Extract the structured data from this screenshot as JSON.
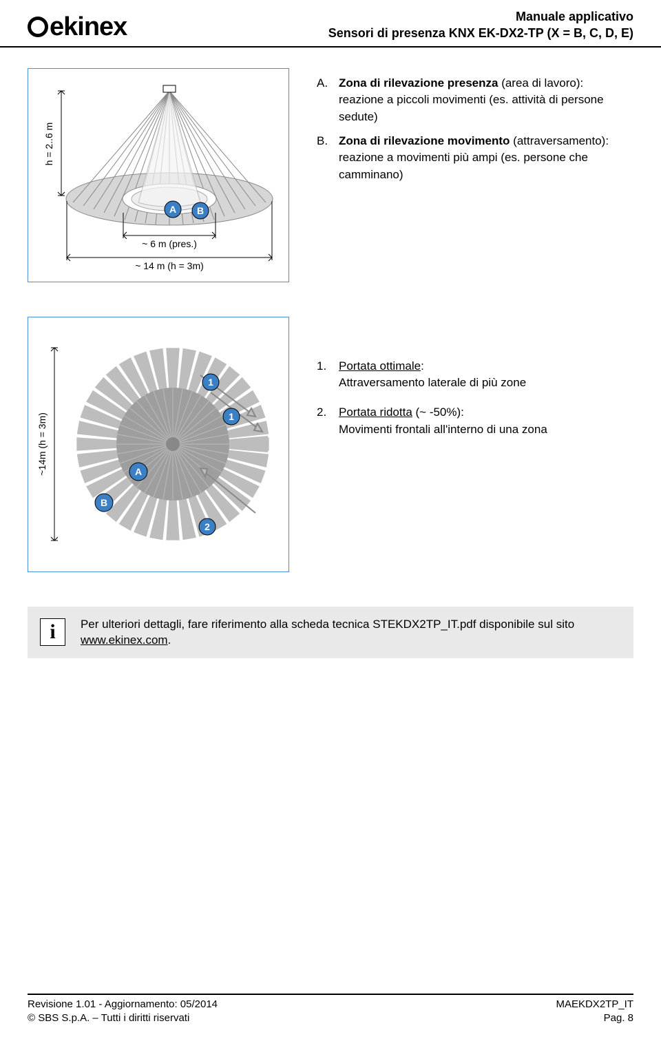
{
  "header": {
    "logo_text": "ekinex",
    "line1": "Manuale applicativo",
    "line2": "Sensori di presenza KNX EK-DX2-TP (X = B, C, D, E)"
  },
  "figure1": {
    "h_label": "h = 2..6 m",
    "pres_label": "~ 6 m (pres.)",
    "mov_label": "~ 14 m (h = 3m)",
    "markers": {
      "A": "A",
      "B": "B"
    },
    "colors": {
      "frame": "#4a90d9",
      "cone_light": "#d6d6d6",
      "cone_dark": "#9e9e9e",
      "ellipse_fill": "#bcbcbc",
      "marker_fill": "#3b7fc4"
    }
  },
  "desc1": {
    "A_letter": "A.",
    "A_bold": "Zona di rilevazione presenza",
    "A_rest": " (area di lavoro):\nreazione a piccoli movimenti (es. attività di persone sedute)",
    "B_letter": "B.",
    "B_bold": "Zona di rilevazione movimento",
    "B_rest": " (attraversamento):\nreazione a movimenti più ampi (es. persone che camminano)"
  },
  "figure2": {
    "v_label": "~14m (h = 3m)",
    "markers": {
      "A": "A",
      "B": "B",
      "one": "1",
      "two": "2"
    },
    "colors": {
      "frame": "#4a90d9",
      "outer_ring": "#bdbdbd",
      "inner_fill": "#9e9e9e",
      "arrow_fill": "#bdbdbd"
    }
  },
  "desc2": {
    "n1": "1.",
    "n1_u": "Portata ottimale",
    "n1_rest": ":\nAttraversamento laterale di più zone",
    "n2": "2.",
    "n2_u": "Portata ridotta",
    "n2_rest": " (~ -50%):\nMovimenti frontali all'interno di una zona"
  },
  "info": {
    "icon": "i",
    "text_a": "Per ulteriori dettagli, fare riferimento alla scheda tecnica STEKDX2TP_IT.pdf disponibile sul sito ",
    "link": "www.ekinex.com",
    "text_b": "."
  },
  "footer": {
    "left1": "Revisione 1.01 - Aggiornamento: 05/2014",
    "left2": "© SBS S.p.A. – Tutti i diritti riservati",
    "right1": "MAEKDX2TP_IT",
    "right2": "Pag. 8"
  }
}
